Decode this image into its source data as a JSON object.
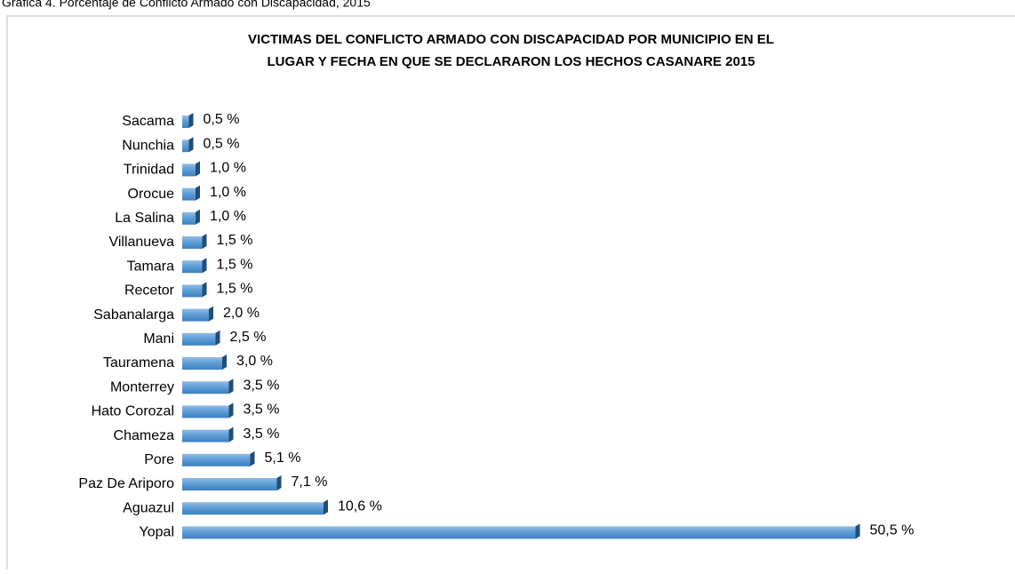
{
  "caption": "Gráfica 4. Porcentaje de Conflicto Armado con Discapacidad, 2015",
  "chart_data": {
    "type": "hbar",
    "title": [
      "VICTIMAS DEL CONFLICTO ARMADO CON DISCAPACIDAD POR MUNICIPIO EN EL",
      "LUGAR Y FECHA EN QUE SE DECLARARON LOS HECHOS CASANARE 2015"
    ],
    "categories": [
      "Sacama",
      "Nunchia",
      "Trinidad",
      "Orocue",
      "La Salina",
      "Villanueva",
      "Tamara",
      "Recetor",
      "Sabanalarga",
      "Mani",
      "Tauramena",
      "Monterrey",
      "Hato Corozal",
      "Chameza",
      "Pore",
      "Paz De Ariporo",
      "Aguazul",
      "Yopal"
    ],
    "values": [
      0.5,
      0.5,
      1.0,
      1.0,
      1.0,
      1.5,
      1.5,
      1.5,
      2.0,
      2.5,
      3.0,
      3.5,
      3.5,
      3.5,
      5.1,
      7.1,
      10.6,
      50.5
    ],
    "value_labels": [
      "0,5 %",
      "0,5 %",
      "1,0 %",
      "1,0 %",
      "1,0 %",
      "1,5 %",
      "1,5 %",
      "1,5 %",
      "2,0 %",
      "2,5 %",
      "3,0 %",
      "3,5 %",
      "3,5 %",
      "3,5 %",
      "5,1 %",
      "7,1 %",
      "10,6 %",
      "50,5 %"
    ],
    "color": "#5b9bd5"
  }
}
